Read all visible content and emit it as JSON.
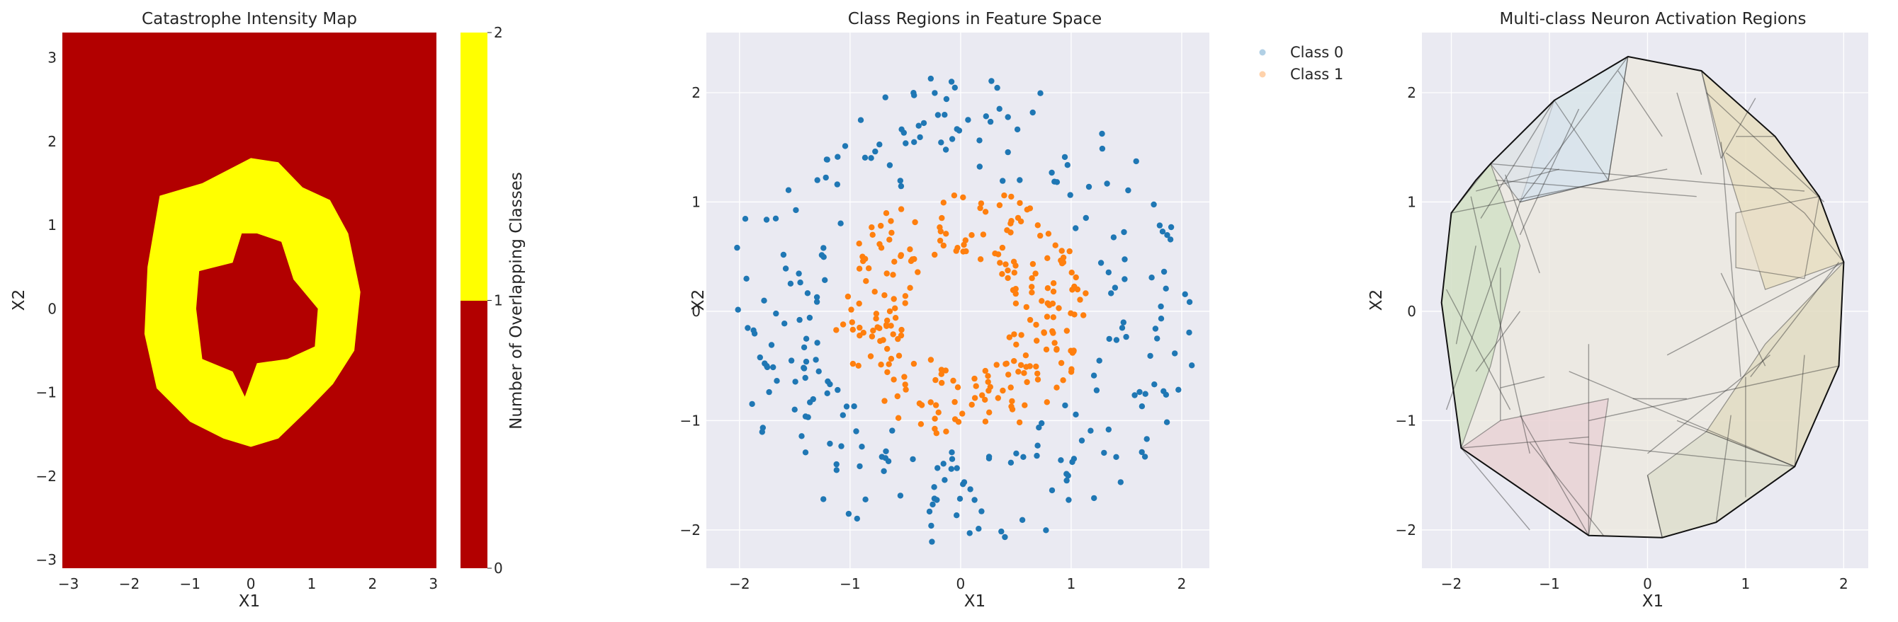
{
  "figure": {
    "panels": [
      {
        "title": "Catastrophe Intensity Map",
        "xlabel": "X1",
        "ylabel": "X2",
        "colorbar_label": "Number of Overlapping Classes"
      },
      {
        "title": "Class Regions in Feature Space",
        "xlabel": "X1",
        "ylabel": "X2",
        "legend": [
          "Class 0",
          "Class 1"
        ]
      },
      {
        "title": "Multi-class Neuron Activation Regions",
        "xlabel": "X1",
        "ylabel": "X2"
      }
    ]
  },
  "chart_data": [
    {
      "type": "heatmap",
      "title": "Catastrophe Intensity Map",
      "xlabel": "X1",
      "ylabel": "X2",
      "xlim": [
        -3.1,
        3.05
      ],
      "ylim": [
        -3.1,
        3.3
      ],
      "xticks": [
        -3,
        -2,
        -1,
        0,
        1,
        2,
        3
      ],
      "yticks": [
        -3,
        -2,
        -1,
        0,
        1,
        2,
        3
      ],
      "value_range": [
        0,
        2
      ],
      "colorbar": {
        "label": "Number of Overlapping Classes",
        "ticks": [
          0,
          1,
          2
        ],
        "levels": [
          {
            "range": [
              0,
              1
            ],
            "color": "#b20000"
          },
          {
            "range": [
              1,
              2
            ],
            "color": "#ffff00"
          }
        ]
      },
      "background_value": 0,
      "ring_value": 1,
      "ring_outer_boundary": [
        [
          0.0,
          1.8
        ],
        [
          0.45,
          1.75
        ],
        [
          0.85,
          1.45
        ],
        [
          1.3,
          1.3
        ],
        [
          1.6,
          0.9
        ],
        [
          1.8,
          0.2
        ],
        [
          1.7,
          -0.5
        ],
        [
          1.35,
          -0.9
        ],
        [
          0.95,
          -1.2
        ],
        [
          0.45,
          -1.55
        ],
        [
          0.0,
          -1.65
        ],
        [
          -0.45,
          -1.55
        ],
        [
          -1.0,
          -1.35
        ],
        [
          -1.55,
          -0.95
        ],
        [
          -1.75,
          -0.3
        ],
        [
          -1.7,
          0.5
        ],
        [
          -1.5,
          1.35
        ],
        [
          -0.8,
          1.5
        ]
      ],
      "ring_inner_boundary": [
        [
          0.1,
          0.9
        ],
        [
          0.5,
          0.8
        ],
        [
          0.7,
          0.35
        ],
        [
          1.1,
          0.0
        ],
        [
          1.05,
          -0.45
        ],
        [
          0.6,
          -0.6
        ],
        [
          0.1,
          -0.65
        ],
        [
          -0.1,
          -1.05
        ],
        [
          -0.3,
          -0.75
        ],
        [
          -0.8,
          -0.6
        ],
        [
          -0.9,
          0.0
        ],
        [
          -0.85,
          0.45
        ],
        [
          -0.3,
          0.55
        ],
        [
          -0.15,
          0.9
        ]
      ],
      "colors": {
        "base": "#b20000",
        "ring": "#ffff00"
      }
    },
    {
      "type": "scatter",
      "title": "Class Regions in Feature Space",
      "xlabel": "X1",
      "ylabel": "X2",
      "xlim": [
        -2.3,
        2.25
      ],
      "ylim": [
        -2.35,
        2.55
      ],
      "xticks": [
        -2,
        -1,
        0,
        1,
        2
      ],
      "yticks": [
        -2,
        -1,
        0,
        1,
        2
      ],
      "grid": true,
      "legend_position": "outside-top-right",
      "series": [
        {
          "name": "Class 0",
          "color": "#1f77b4",
          "shape": "ring",
          "radius_range": [
            1.25,
            2.15
          ],
          "n_points": 250
        },
        {
          "name": "Class 1",
          "color": "#ff7f0e",
          "shape": "ring",
          "radius_range": [
            0.5,
            1.15
          ],
          "n_points": 250
        }
      ]
    },
    {
      "type": "area",
      "title": "Multi-class Neuron Activation Regions",
      "xlabel": "X1",
      "ylabel": "X2",
      "xlim": [
        -2.3,
        2.25
      ],
      "ylim": [
        -2.35,
        2.55
      ],
      "xticks": [
        -2,
        -1,
        0,
        1,
        2
      ],
      "yticks": [
        -2,
        -1,
        0,
        1,
        2
      ],
      "grid": true,
      "outer_hull": [
        [
          -0.2,
          2.33
        ],
        [
          0.55,
          2.2
        ],
        [
          1.3,
          1.6
        ],
        [
          1.75,
          1.05
        ],
        [
          2.0,
          0.45
        ],
        [
          1.95,
          -0.5
        ],
        [
          1.5,
          -1.42
        ],
        [
          0.7,
          -1.93
        ],
        [
          0.15,
          -2.07
        ],
        [
          -0.6,
          -2.05
        ],
        [
          -1.9,
          -1.25
        ],
        [
          -2.1,
          0.08
        ],
        [
          -2.0,
          0.9
        ],
        [
          -1.75,
          1.2
        ],
        [
          -1.6,
          1.35
        ],
        [
          -0.95,
          1.93
        ]
      ],
      "regions": [
        {
          "color": "#cfe3f2",
          "points": [
            [
              -0.95,
              1.93
            ],
            [
              -0.2,
              2.33
            ],
            [
              -0.4,
              1.2
            ],
            [
              -1.3,
              1.0
            ]
          ]
        },
        {
          "color": "#c5dcb8",
          "points": [
            [
              -2.1,
              0.08
            ],
            [
              -2.0,
              0.9
            ],
            [
              -1.6,
              1.35
            ],
            [
              -1.3,
              0.6
            ],
            [
              -1.6,
              -0.5
            ],
            [
              -1.9,
              -1.25
            ]
          ]
        },
        {
          "color": "#e7c6cf",
          "points": [
            [
              -1.9,
              -1.25
            ],
            [
              -1.5,
              -1.0
            ],
            [
              -0.4,
              -0.8
            ],
            [
              -0.6,
              -2.05
            ]
          ]
        },
        {
          "color": "#e6d9b0",
          "points": [
            [
              0.55,
              2.2
            ],
            [
              1.3,
              1.6
            ],
            [
              1.75,
              1.05
            ],
            [
              2.0,
              0.45
            ],
            [
              1.2,
              0.2
            ],
            [
              0.75,
              1.5
            ]
          ]
        },
        {
          "color": "#ddd6b3",
          "points": [
            [
              1.5,
              -1.42
            ],
            [
              1.95,
              -0.5
            ],
            [
              2.0,
              0.45
            ],
            [
              1.2,
              -0.3
            ],
            [
              0.6,
              -1.1
            ]
          ]
        },
        {
          "color": "#d7d9c2",
          "points": [
            [
              0.7,
              -1.93
            ],
            [
              1.5,
              -1.42
            ],
            [
              0.6,
              -1.1
            ],
            [
              0.0,
              -1.5
            ],
            [
              0.15,
              -2.07
            ]
          ]
        },
        {
          "color": "#d9e1ec",
          "points": [
            [
              -1.6,
              1.35
            ],
            [
              -0.95,
              1.93
            ],
            [
              -0.4,
              1.2
            ],
            [
              -1.3,
              1.0
            ]
          ]
        },
        {
          "color": "#e9dfc9",
          "points": [
            [
              0.9,
              0.9
            ],
            [
              1.75,
              1.05
            ],
            [
              1.6,
              0.3
            ],
            [
              0.9,
              0.4
            ]
          ]
        }
      ],
      "edges": [
        [
          [
            -1.6,
            1.35
          ],
          [
            1.6,
            1.1
          ]
        ],
        [
          [
            -1.55,
            1.2
          ],
          [
            0.5,
            1.05
          ]
        ],
        [
          [
            -2.0,
            0.9
          ],
          [
            0.2,
            1.3
          ]
        ],
        [
          [
            -1.75,
            1.1
          ],
          [
            -0.9,
            1.3
          ]
        ],
        [
          [
            -1.45,
            1.25
          ],
          [
            -1.1,
            0.35
          ]
        ],
        [
          [
            -1.7,
            0.85
          ],
          [
            -0.95,
            1.93
          ]
        ],
        [
          [
            -1.3,
            0.7
          ],
          [
            -0.7,
            1.85
          ]
        ],
        [
          [
            -1.3,
            1.0
          ],
          [
            -0.2,
            2.33
          ]
        ],
        [
          [
            -0.4,
            1.2
          ],
          [
            -0.2,
            2.33
          ]
        ],
        [
          [
            -0.3,
            2.2
          ],
          [
            0.15,
            1.6
          ]
        ],
        [
          [
            0.3,
            2.0
          ],
          [
            0.55,
            1.25
          ]
        ],
        [
          [
            0.55,
            2.2
          ],
          [
            0.75,
            1.4
          ]
        ],
        [
          [
            0.75,
            1.4
          ],
          [
            1.1,
            1.95
          ]
        ],
        [
          [
            0.6,
            2.0
          ],
          [
            1.8,
            1.0
          ]
        ],
        [
          [
            0.9,
            1.6
          ],
          [
            1.3,
            1.6
          ]
        ],
        [
          [
            0.75,
            1.55
          ],
          [
            0.95,
            -0.6
          ]
        ],
        [
          [
            0.8,
            1.45
          ],
          [
            1.6,
            0.9
          ]
        ],
        [
          [
            1.6,
            0.9
          ],
          [
            2.0,
            0.45
          ]
        ],
        [
          [
            1.95,
            0.45
          ],
          [
            1.05,
            -0.6
          ]
        ],
        [
          [
            0.75,
            0.35
          ],
          [
            1.2,
            -0.5
          ]
        ],
        [
          [
            2.0,
            0.45
          ],
          [
            0.2,
            -0.4
          ]
        ],
        [
          [
            1.95,
            -0.5
          ],
          [
            -0.6,
            -1.0
          ]
        ],
        [
          [
            1.6,
            -0.4
          ],
          [
            1.5,
            -1.42
          ]
        ],
        [
          [
            1.25,
            -0.4
          ],
          [
            0.0,
            -1.3
          ]
        ],
        [
          [
            1.0,
            -0.6
          ],
          [
            1.0,
            -1.7
          ]
        ],
        [
          [
            0.7,
            -1.93
          ],
          [
            0.85,
            -0.95
          ]
        ],
        [
          [
            0.6,
            -1.1
          ],
          [
            0.3,
            -1.0
          ]
        ],
        [
          [
            0.0,
            -1.5
          ],
          [
            0.15,
            -2.07
          ]
        ],
        [
          [
            -0.15,
            -0.8
          ],
          [
            0.4,
            -0.8
          ]
        ],
        [
          [
            -0.8,
            -0.55
          ],
          [
            1.5,
            -1.42
          ]
        ],
        [
          [
            -0.8,
            -1.2
          ],
          [
            1.5,
            -1.42
          ]
        ],
        [
          [
            -1.9,
            -1.25
          ],
          [
            -0.6,
            -1.15
          ]
        ],
        [
          [
            -1.9,
            -1.25
          ],
          [
            -1.2,
            -2.0
          ]
        ],
        [
          [
            -1.2,
            -1.2
          ],
          [
            -0.45,
            -2.05
          ]
        ],
        [
          [
            -1.5,
            -1.0
          ],
          [
            -1.5,
            0.4
          ]
        ],
        [
          [
            -1.75,
            -0.55
          ],
          [
            -1.3,
            0.0
          ]
        ],
        [
          [
            -1.95,
            -0.3
          ],
          [
            -1.75,
            0.6
          ]
        ],
        [
          [
            -2.05,
            0.2
          ],
          [
            -1.4,
            -0.9
          ]
        ],
        [
          [
            -1.5,
            -0.7
          ],
          [
            -1.05,
            -0.6
          ]
        ],
        [
          [
            -1.3,
            -0.95
          ],
          [
            -0.6,
            -2.05
          ]
        ],
        [
          [
            -0.6,
            -0.3
          ],
          [
            -0.6,
            -2.05
          ]
        ],
        [
          [
            -1.8,
            1.05
          ],
          [
            -1.2,
            -1.3
          ]
        ],
        [
          [
            -2.05,
            -0.9
          ],
          [
            -1.3,
            1.0
          ]
        ]
      ]
    }
  ]
}
